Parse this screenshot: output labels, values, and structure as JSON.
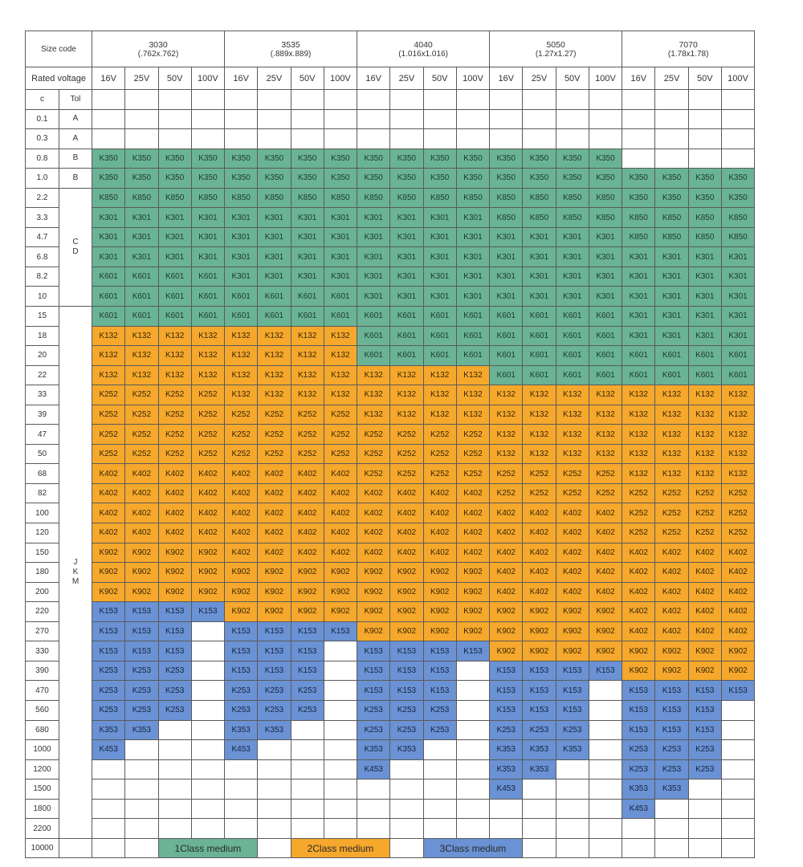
{
  "header": {
    "size_code_label": "Size code",
    "rated_voltage_label": "Rated voltage",
    "cap_label": "c",
    "tol_label": "Tol",
    "sizes": [
      {
        "name": "3030",
        "dim": "(.762x.762)"
      },
      {
        "name": "3535",
        "dim": "(.889x.889)"
      },
      {
        "name": "4040",
        "dim": "(1.016x1.016)"
      },
      {
        "name": "5050",
        "dim": "(1.27x1.27)"
      },
      {
        "name": "7070",
        "dim": "(1.78x1.78)"
      }
    ],
    "voltages": [
      "16V",
      "25V",
      "50V",
      "100V"
    ]
  },
  "rows": [
    {
      "cap": "0.1",
      "cells": [
        [
          0,
          0,
          0,
          0
        ],
        [
          0,
          0,
          0,
          0
        ],
        [
          0,
          0,
          0,
          0
        ],
        [
          0,
          0,
          0,
          0
        ],
        [
          0,
          0,
          0,
          0
        ]
      ]
    },
    {
      "cap": "0.3",
      "cells": [
        [
          0,
          0,
          0,
          0
        ],
        [
          0,
          0,
          0,
          0
        ],
        [
          0,
          0,
          0,
          0
        ],
        [
          0,
          0,
          0,
          0
        ],
        [
          0,
          0,
          0,
          0
        ]
      ]
    },
    {
      "cap": "0.8",
      "cells": [
        [
          "K350",
          "K350",
          "K350",
          "K350"
        ],
        [
          "K350",
          "K350",
          "K350",
          "K350"
        ],
        [
          "K350",
          "K350",
          "K350",
          "K350"
        ],
        [
          "K350",
          "K350",
          "K350",
          "K350"
        ],
        [
          0,
          0,
          0,
          0
        ]
      ]
    },
    {
      "cap": "1.0",
      "cells": [
        [
          "K350",
          "K350",
          "K350",
          "K350"
        ],
        [
          "K350",
          "K350",
          "K350",
          "K350"
        ],
        [
          "K350",
          "K350",
          "K350",
          "K350"
        ],
        [
          "K350",
          "K350",
          "K350",
          "K350"
        ],
        [
          "K350",
          "K350",
          "K350",
          "K350"
        ]
      ]
    },
    {
      "cap": "2.2",
      "cells": [
        [
          "K850",
          "K850",
          "K850",
          "K850"
        ],
        [
          "K850",
          "K850",
          "K850",
          "K850"
        ],
        [
          "K850",
          "K850",
          "K850",
          "K850"
        ],
        [
          "K850",
          "K850",
          "K850",
          "K850"
        ],
        [
          "K350",
          "K350",
          "K350",
          "K350"
        ]
      ]
    },
    {
      "cap": "3.3",
      "cells": [
        [
          "K301",
          "K301",
          "K301",
          "K301"
        ],
        [
          "K301",
          "K301",
          "K301",
          "K301"
        ],
        [
          "K301",
          "K301",
          "K301",
          "K301"
        ],
        [
          "K850",
          "K850",
          "K850",
          "K850"
        ],
        [
          "K850",
          "K850",
          "K850",
          "K850"
        ]
      ]
    },
    {
      "cap": "4.7",
      "cells": [
        [
          "K301",
          "K301",
          "K301",
          "K301"
        ],
        [
          "K301",
          "K301",
          "K301",
          "K301"
        ],
        [
          "K301",
          "K301",
          "K301",
          "K301"
        ],
        [
          "K301",
          "K301",
          "K301",
          "K301"
        ],
        [
          "K850",
          "K850",
          "K850",
          "K850"
        ]
      ]
    },
    {
      "cap": "6.8",
      "cells": [
        [
          "K301",
          "K301",
          "K301",
          "K301"
        ],
        [
          "K301",
          "K301",
          "K301",
          "K301"
        ],
        [
          "K301",
          "K301",
          "K301",
          "K301"
        ],
        [
          "K301",
          "K301",
          "K301",
          "K301"
        ],
        [
          "K301",
          "K301",
          "K301",
          "K301"
        ]
      ]
    },
    {
      "cap": "8.2",
      "cells": [
        [
          "K601",
          "K601",
          "K601",
          "K601"
        ],
        [
          "K301",
          "K301",
          "K301",
          "K301"
        ],
        [
          "K301",
          "K301",
          "K301",
          "K301"
        ],
        [
          "K301",
          "K301",
          "K301",
          "K301"
        ],
        [
          "K301",
          "K301",
          "K301",
          "K301"
        ]
      ]
    },
    {
      "cap": "10",
      "cells": [
        [
          "K601",
          "K601",
          "K601",
          "K601"
        ],
        [
          "K601",
          "K601",
          "K601",
          "K601"
        ],
        [
          "K301",
          "K301",
          "K301",
          "K301"
        ],
        [
          "K301",
          "K301",
          "K301",
          "K301"
        ],
        [
          "K301",
          "K301",
          "K301",
          "K301"
        ]
      ]
    },
    {
      "cap": "15",
      "cells": [
        [
          "K601",
          "K601",
          "K601",
          "K601"
        ],
        [
          "K601",
          "K601",
          "K601",
          "K601"
        ],
        [
          "K601",
          "K601",
          "K601",
          "K601"
        ],
        [
          "K601",
          "K601",
          "K601",
          "K601"
        ],
        [
          "K301",
          "K301",
          "K301",
          "K301"
        ]
      ]
    },
    {
      "cap": "18",
      "cells": [
        [
          "K132",
          "K132",
          "K132",
          "K132"
        ],
        [
          "K132",
          "K132",
          "K132",
          "K132"
        ],
        [
          "K601",
          "K601",
          "K601",
          "K601"
        ],
        [
          "K601",
          "K601",
          "K601",
          "K601"
        ],
        [
          "K301",
          "K301",
          "K301",
          "K301"
        ]
      ]
    },
    {
      "cap": "20",
      "cells": [
        [
          "K132",
          "K132",
          "K132",
          "K132"
        ],
        [
          "K132",
          "K132",
          "K132",
          "K132"
        ],
        [
          "K601",
          "K601",
          "K601",
          "K601"
        ],
        [
          "K601",
          "K601",
          "K601",
          "K601"
        ],
        [
          "K601",
          "K601",
          "K601",
          "K601"
        ]
      ]
    },
    {
      "cap": "22",
      "cells": [
        [
          "K132",
          "K132",
          "K132",
          "K132"
        ],
        [
          "K132",
          "K132",
          "K132",
          "K132"
        ],
        [
          "K132",
          "K132",
          "K132",
          "K132"
        ],
        [
          "K601",
          "K601",
          "K601",
          "K601"
        ],
        [
          "K601",
          "K601",
          "K601",
          "K601"
        ]
      ]
    },
    {
      "cap": "33",
      "cells": [
        [
          "K252",
          "K252",
          "K252",
          "K252"
        ],
        [
          "K132",
          "K132",
          "K132",
          "K132"
        ],
        [
          "K132",
          "K132",
          "K132",
          "K132"
        ],
        [
          "K132",
          "K132",
          "K132",
          "K132"
        ],
        [
          "K132",
          "K132",
          "K132",
          "K132"
        ]
      ]
    },
    {
      "cap": "39",
      "cells": [
        [
          "K252",
          "K252",
          "K252",
          "K252"
        ],
        [
          "K252",
          "K252",
          "K252",
          "K252"
        ],
        [
          "K132",
          "K132",
          "K132",
          "K132"
        ],
        [
          "K132",
          "K132",
          "K132",
          "K132"
        ],
        [
          "K132",
          "K132",
          "K132",
          "K132"
        ]
      ]
    },
    {
      "cap": "47",
      "cells": [
        [
          "K252",
          "K252",
          "K252",
          "K252"
        ],
        [
          "K252",
          "K252",
          "K252",
          "K252"
        ],
        [
          "K252",
          "K252",
          "K252",
          "K252"
        ],
        [
          "K132",
          "K132",
          "K132",
          "K132"
        ],
        [
          "K132",
          "K132",
          "K132",
          "K132"
        ]
      ]
    },
    {
      "cap": "50",
      "cells": [
        [
          "K252",
          "K252",
          "K252",
          "K252"
        ],
        [
          "K252",
          "K252",
          "K252",
          "K252"
        ],
        [
          "K252",
          "K252",
          "K252",
          "K252"
        ],
        [
          "K132",
          "K132",
          "K132",
          "K132"
        ],
        [
          "K132",
          "K132",
          "K132",
          "K132"
        ]
      ]
    },
    {
      "cap": "68",
      "cells": [
        [
          "K402",
          "K402",
          "K402",
          "K402"
        ],
        [
          "K402",
          "K402",
          "K402",
          "K402"
        ],
        [
          "K252",
          "K252",
          "K252",
          "K252"
        ],
        [
          "K252",
          "K252",
          "K252",
          "K252"
        ],
        [
          "K132",
          "K132",
          "K132",
          "K132"
        ]
      ]
    },
    {
      "cap": "82",
      "cells": [
        [
          "K402",
          "K402",
          "K402",
          "K402"
        ],
        [
          "K402",
          "K402",
          "K402",
          "K402"
        ],
        [
          "K402",
          "K402",
          "K402",
          "K402"
        ],
        [
          "K252",
          "K252",
          "K252",
          "K252"
        ],
        [
          "K252",
          "K252",
          "K252",
          "K252"
        ]
      ]
    },
    {
      "cap": "100",
      "cells": [
        [
          "K402",
          "K402",
          "K402",
          "K402"
        ],
        [
          "K402",
          "K402",
          "K402",
          "K402"
        ],
        [
          "K402",
          "K402",
          "K402",
          "K402"
        ],
        [
          "K402",
          "K402",
          "K402",
          "K402"
        ],
        [
          "K252",
          "K252",
          "K252",
          "K252"
        ]
      ]
    },
    {
      "cap": "120",
      "cells": [
        [
          "K402",
          "K402",
          "K402",
          "K402"
        ],
        [
          "K402",
          "K402",
          "K402",
          "K402"
        ],
        [
          "K402",
          "K402",
          "K402",
          "K402"
        ],
        [
          "K402",
          "K402",
          "K402",
          "K402"
        ],
        [
          "K252",
          "K252",
          "K252",
          "K252"
        ]
      ]
    },
    {
      "cap": "150",
      "cells": [
        [
          "K902",
          "K902",
          "K902",
          "K902"
        ],
        [
          "K402",
          "K402",
          "K402",
          "K402"
        ],
        [
          "K402",
          "K402",
          "K402",
          "K402"
        ],
        [
          "K402",
          "K402",
          "K402",
          "K402"
        ],
        [
          "K402",
          "K402",
          "K402",
          "K402"
        ]
      ]
    },
    {
      "cap": "180",
      "cells": [
        [
          "K902",
          "K902",
          "K902",
          "K902"
        ],
        [
          "K902",
          "K902",
          "K902",
          "K902"
        ],
        [
          "K902",
          "K902",
          "K902",
          "K902"
        ],
        [
          "K402",
          "K402",
          "K402",
          "K402"
        ],
        [
          "K402",
          "K402",
          "K402",
          "K402"
        ]
      ]
    },
    {
      "cap": "200",
      "cells": [
        [
          "K902",
          "K902",
          "K902",
          "K902"
        ],
        [
          "K902",
          "K902",
          "K902",
          "K902"
        ],
        [
          "K902",
          "K902",
          "K902",
          "K902"
        ],
        [
          "K402",
          "K402",
          "K402",
          "K402"
        ],
        [
          "K402",
          "K402",
          "K402",
          "K402"
        ]
      ]
    },
    {
      "cap": "220",
      "cells": [
        [
          "K153",
          "K153",
          "K153",
          "K153"
        ],
        [
          "K902",
          "K902",
          "K902",
          "K902"
        ],
        [
          "K902",
          "K902",
          "K902",
          "K902"
        ],
        [
          "K902",
          "K902",
          "K902",
          "K902"
        ],
        [
          "K402",
          "K402",
          "K402",
          "K402"
        ]
      ]
    },
    {
      "cap": "270",
      "cells": [
        [
          "K153",
          "K153",
          "K153",
          0
        ],
        [
          "K153",
          "K153",
          "K153",
          "K153"
        ],
        [
          "K902",
          "K902",
          "K902",
          "K902"
        ],
        [
          "K902",
          "K902",
          "K902",
          "K902"
        ],
        [
          "K402",
          "K402",
          "K402",
          "K402"
        ]
      ]
    },
    {
      "cap": "330",
      "cells": [
        [
          "K153",
          "K153",
          "K153",
          0
        ],
        [
          "K153",
          "K153",
          "K153",
          0
        ],
        [
          "K153",
          "K153",
          "K153",
          "K153"
        ],
        [
          "K902",
          "K902",
          "K902",
          "K902"
        ],
        [
          "K902",
          "K902",
          "K902",
          "K902"
        ]
      ]
    },
    {
      "cap": "390",
      "cells": [
        [
          "K253",
          "K253",
          "K253",
          0
        ],
        [
          "K153",
          "K153",
          "K153",
          0
        ],
        [
          "K153",
          "K153",
          "K153",
          0
        ],
        [
          "K153",
          "K153",
          "K153",
          "K153"
        ],
        [
          "K902",
          "K902",
          "K902",
          "K902"
        ]
      ]
    },
    {
      "cap": "470",
      "cells": [
        [
          "K253",
          "K253",
          "K253",
          0
        ],
        [
          "K253",
          "K253",
          "K253",
          0
        ],
        [
          "K153",
          "K153",
          "K153",
          0
        ],
        [
          "K153",
          "K153",
          "K153",
          0
        ],
        [
          "K153",
          "K153",
          "K153",
          "K153"
        ]
      ]
    },
    {
      "cap": "560",
      "cells": [
        [
          "K253",
          "K253",
          "K253",
          0
        ],
        [
          "K253",
          "K253",
          "K253",
          0
        ],
        [
          "K253",
          "K253",
          "K253",
          0
        ],
        [
          "K153",
          "K153",
          "K153",
          0
        ],
        [
          "K153",
          "K153",
          "K153",
          0
        ]
      ]
    },
    {
      "cap": "680",
      "cells": [
        [
          "K353",
          "K353",
          0,
          0
        ],
        [
          "K353",
          "K353",
          0,
          0
        ],
        [
          "K253",
          "K253",
          "K253",
          0
        ],
        [
          "K253",
          "K253",
          "K253",
          0
        ],
        [
          "K153",
          "K153",
          "K153",
          0
        ]
      ]
    },
    {
      "cap": "1000",
      "cells": [
        [
          "K453",
          0,
          0,
          0
        ],
        [
          "K453",
          0,
          0,
          0
        ],
        [
          "K353",
          "K353",
          0,
          0
        ],
        [
          "K353",
          "K353",
          "K353",
          0
        ],
        [
          "K253",
          "K253",
          "K253",
          0
        ]
      ]
    },
    {
      "cap": "1200",
      "cells": [
        [
          0,
          0,
          0,
          0
        ],
        [
          0,
          0,
          0,
          0
        ],
        [
          "K453",
          0,
          0,
          0
        ],
        [
          "K353",
          "K353",
          0,
          0
        ],
        [
          "K253",
          "K253",
          "K253",
          0
        ]
      ]
    },
    {
      "cap": "1500",
      "cells": [
        [
          0,
          0,
          0,
          0
        ],
        [
          0,
          0,
          0,
          0
        ],
        [
          0,
          0,
          0,
          0
        ],
        [
          "K453",
          0,
          0,
          0
        ],
        [
          "K353",
          "K353",
          0,
          0
        ]
      ]
    },
    {
      "cap": "1800",
      "cells": [
        [
          0,
          0,
          0,
          0
        ],
        [
          0,
          0,
          0,
          0
        ],
        [
          0,
          0,
          0,
          0
        ],
        [
          0,
          0,
          0,
          0
        ],
        [
          "K453",
          0,
          0,
          0
        ]
      ]
    },
    {
      "cap": "2200",
      "cells": [
        [
          0,
          0,
          0,
          0
        ],
        [
          0,
          0,
          0,
          0
        ],
        [
          0,
          0,
          0,
          0
        ],
        [
          0,
          0,
          0,
          0
        ],
        [
          0,
          0,
          0,
          0
        ]
      ]
    },
    {
      "cap": "10000",
      "cells": []
    }
  ],
  "tolerance_groups": [
    {
      "label": "A"
    },
    {
      "label": "A"
    },
    {
      "label": "B"
    },
    {
      "label": "B"
    },
    {
      "lines": [
        "C",
        "D"
      ]
    },
    {
      "lines": [
        "J",
        "K",
        "M"
      ]
    }
  ],
  "class_codes": {
    "class1": [
      "K350",
      "K850",
      "K301",
      "K601"
    ],
    "class2": [
      "K132",
      "K252",
      "K402",
      "K902"
    ],
    "class3": [
      "K153",
      "K253",
      "K353",
      "K453"
    ]
  },
  "legend": {
    "class1": "1Class medium",
    "class2": "2Class medium",
    "class3": "3Class medium"
  },
  "colors": {
    "class1": "#6ab395",
    "class2": "#f5a82c",
    "class3": "#6a92d4"
  }
}
